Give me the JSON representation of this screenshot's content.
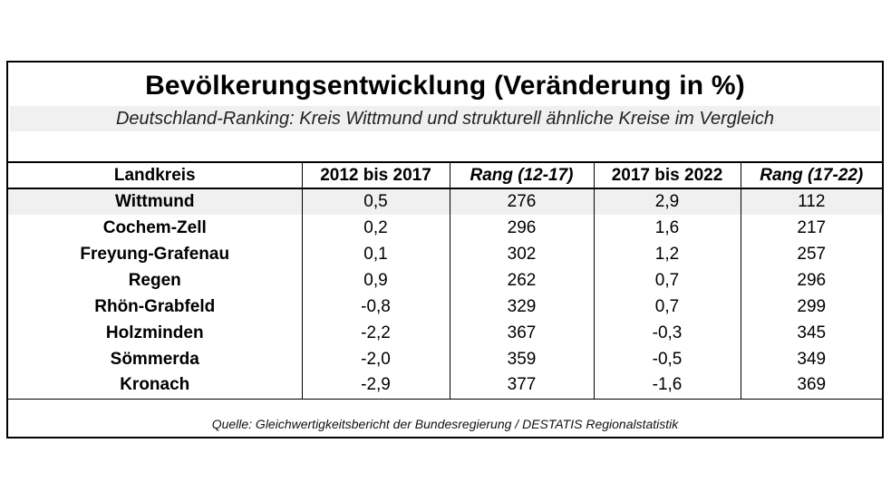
{
  "chart_data": {
    "type": "table",
    "title": "Bevölkerungsentwicklung (Veränderung in %)",
    "subtitle": "Deutschland-Ranking: Kreis Wittmund und strukturell ähnliche Kreise im Vergleich",
    "columns": [
      "Landkreis",
      "2012 bis 2017",
      "Rang (12-17)",
      "2017 bis 2022",
      "Rang (17-22)"
    ],
    "rows": [
      [
        "Wittmund",
        "0,5",
        "276",
        "2,9",
        "112"
      ],
      [
        "Cochem-Zell",
        "0,2",
        "296",
        "1,6",
        "217"
      ],
      [
        "Freyung-Grafenau",
        "0,1",
        "302",
        "1,2",
        "257"
      ],
      [
        "Regen",
        "0,9",
        "262",
        "0,7",
        "296"
      ],
      [
        "Rhön-Grabfeld",
        "-0,8",
        "329",
        "0,7",
        "299"
      ],
      [
        "Holzminden",
        "-2,2",
        "367",
        "-0,3",
        "345"
      ],
      [
        "Sömmerda",
        "-2,0",
        "359",
        "-0,5",
        "349"
      ],
      [
        "Kronach",
        "-2,9",
        "377",
        "-1,6",
        "369"
      ]
    ],
    "highlighted_row": "Wittmund",
    "source": "Quelle: Gleichwertigkeitsbericht der Bundesregierung / DESTATIS Regionalstatistik"
  }
}
